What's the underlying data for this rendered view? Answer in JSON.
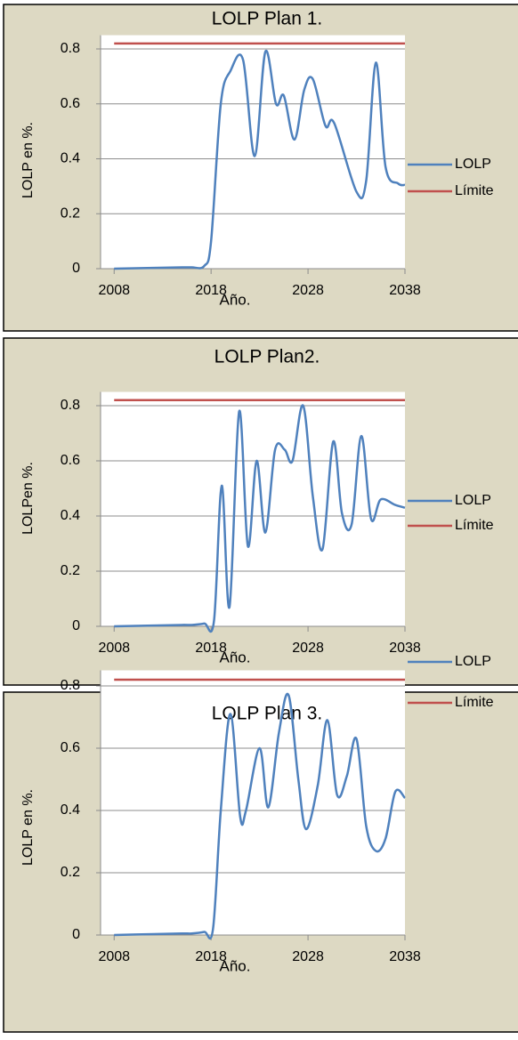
{
  "chart_data": [
    {
      "type": "line",
      "title": "LOLP Plan 1.",
      "y_label": "LOLP en %.",
      "x_label": "Año.",
      "xlim": [
        2006.6,
        2038
      ],
      "xticks": [
        2008,
        2018,
        2028,
        2038
      ],
      "ylim": [
        0,
        0.85
      ],
      "yticks": [
        0,
        0.2,
        0.4,
        0.6,
        0.8
      ],
      "grid": true,
      "legend": "right",
      "series": [
        {
          "name": "LOLP",
          "color": "#4f81bd",
          "x": [
            2008,
            2012,
            2015,
            2016,
            2017.3,
            2018,
            2019,
            2020,
            2021.3,
            2022.5,
            2023.6,
            2024.7,
            2025.5,
            2026.6,
            2027.6,
            2028.5,
            2029.8,
            2030.7,
            2033,
            2034,
            2035,
            2036,
            2037.3,
            2038
          ],
          "values": [
            0,
            0.003,
            0.005,
            0.005,
            0.01,
            0.1,
            0.6,
            0.72,
            0.76,
            0.41,
            0.79,
            0.6,
            0.63,
            0.47,
            0.65,
            0.69,
            0.52,
            0.53,
            0.28,
            0.32,
            0.75,
            0.37,
            0.31,
            0.305
          ]
        },
        {
          "name": "Límite",
          "color": "#c0504d",
          "x": [
            2008,
            2038
          ],
          "values": [
            0.82,
            0.82
          ]
        }
      ]
    },
    {
      "type": "line",
      "title": "LOLP Plan2.",
      "y_label": "LOLPen %.",
      "x_label": "Año.",
      "xlim": [
        2006.6,
        2038
      ],
      "xticks": [
        2008,
        2018,
        2028,
        2038
      ],
      "ylim": [
        0,
        0.85
      ],
      "yticks": [
        0,
        0.2,
        0.4,
        0.6,
        0.8
      ],
      "grid": true,
      "legend": "right",
      "series": [
        {
          "name": "LOLP",
          "color": "#4f81bd",
          "x": [
            2008,
            2012,
            2015,
            2016,
            2017.3,
            2018.3,
            2019.1,
            2019.9,
            2020.9,
            2021.8,
            2022.7,
            2023.6,
            2024.6,
            2025.6,
            2026.4,
            2027.5,
            2028.5,
            2029.5,
            2030.6,
            2031.5,
            2032.5,
            2033.5,
            2034.5,
            2035.5,
            2037,
            2038
          ],
          "values": [
            0,
            0.003,
            0.005,
            0.005,
            0.01,
            0.02,
            0.51,
            0.07,
            0.78,
            0.29,
            0.6,
            0.34,
            0.64,
            0.64,
            0.6,
            0.8,
            0.47,
            0.28,
            0.67,
            0.41,
            0.37,
            0.69,
            0.39,
            0.46,
            0.44,
            0.43
          ]
        },
        {
          "name": "Límite",
          "color": "#c0504d",
          "x": [
            2008,
            2038
          ],
          "values": [
            0.82,
            0.82
          ]
        }
      ]
    },
    {
      "type": "line",
      "title": "LOLP Plan 3.",
      "y_label": "LOLP en %.",
      "x_label": "Año.",
      "xlim": [
        2006.6,
        2038
      ],
      "xticks": [
        2008,
        2018,
        2028,
        2038
      ],
      "ylim": [
        0,
        0.85
      ],
      "yticks": [
        0,
        0.2,
        0.4,
        0.6,
        0.8
      ],
      "grid": true,
      "legend": "right",
      "series": [
        {
          "name": "LOLP",
          "color": "#4f81bd",
          "x": [
            2008,
            2012,
            2015,
            2016,
            2017.3,
            2018.2,
            2019,
            2020,
            2021,
            2021.6,
            2023,
            2023.9,
            2025,
            2026,
            2027,
            2027.8,
            2029,
            2030,
            2031,
            2032,
            2033,
            2034,
            2035,
            2036,
            2037,
            2038
          ],
          "values": [
            0,
            0.003,
            0.005,
            0.005,
            0.01,
            0.02,
            0.4,
            0.71,
            0.38,
            0.4,
            0.6,
            0.41,
            0.65,
            0.77,
            0.5,
            0.34,
            0.48,
            0.69,
            0.45,
            0.51,
            0.63,
            0.35,
            0.27,
            0.31,
            0.46,
            0.44
          ]
        },
        {
          "name": "Límite",
          "color": "#c0504d",
          "x": [
            2008,
            2038
          ],
          "values": [
            0.82,
            0.82
          ]
        }
      ]
    }
  ]
}
